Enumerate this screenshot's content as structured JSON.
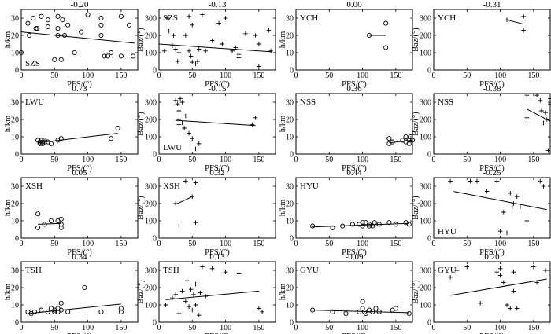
{
  "figure": {
    "xlabel": "PFS/(°)",
    "axis_ticks": {
      "x": [
        0,
        50,
        100,
        150
      ],
      "h": [
        0,
        10,
        20,
        30
      ],
      "baz": [
        0,
        100,
        200,
        300
      ]
    }
  },
  "chart_data": [
    {
      "type": "scatter",
      "title": "-0.20",
      "station": "SZS",
      "ylabel": "h/km",
      "marker": "circle",
      "label_pos": "bottom-left",
      "xlim": [
        0,
        175
      ],
      "ylim": [
        0,
        35
      ],
      "fit": [
        [
          0,
          22
        ],
        [
          170,
          15.5
        ]
      ],
      "points": [
        [
          0,
          10
        ],
        [
          10,
          27
        ],
        [
          12,
          20
        ],
        [
          18,
          30
        ],
        [
          22,
          24
        ],
        [
          24,
          24
        ],
        [
          30,
          31
        ],
        [
          40,
          29
        ],
        [
          40,
          25
        ],
        [
          50,
          6
        ],
        [
          55,
          31
        ],
        [
          55,
          24
        ],
        [
          55,
          20
        ],
        [
          60,
          6
        ],
        [
          62,
          29
        ],
        [
          65,
          20
        ],
        [
          70,
          26
        ],
        [
          80,
          10
        ],
        [
          90,
          22
        ],
        [
          100,
          32
        ],
        [
          120,
          30
        ],
        [
          120,
          26
        ],
        [
          120,
          20
        ],
        [
          125,
          8
        ],
        [
          130,
          8
        ],
        [
          135,
          10
        ],
        [
          150,
          8
        ],
        [
          150,
          31
        ],
        [
          162,
          26
        ],
        [
          168,
          8
        ]
      ]
    },
    {
      "type": "scatter",
      "title": "-0.13",
      "station": "SZS",
      "ylabel": "Baz/(°)",
      "marker": "plus",
      "label_pos": "top-left",
      "xlim": [
        0,
        175
      ],
      "ylim": [
        0,
        350
      ],
      "fit": [
        [
          0,
          150
        ],
        [
          170,
          105
        ]
      ],
      "points": [
        [
          8,
          110
        ],
        [
          12,
          300
        ],
        [
          15,
          225
        ],
        [
          20,
          140
        ],
        [
          22,
          200
        ],
        [
          25,
          120
        ],
        [
          28,
          50
        ],
        [
          30,
          100
        ],
        [
          40,
          200
        ],
        [
          45,
          110
        ],
        [
          45,
          310
        ],
        [
          48,
          80
        ],
        [
          50,
          45
        ],
        [
          50,
          260
        ],
        [
          55,
          35
        ],
        [
          58,
          50
        ],
        [
          60,
          120
        ],
        [
          65,
          320
        ],
        [
          70,
          110
        ],
        [
          80,
          170
        ],
        [
          90,
          270
        ],
        [
          95,
          150
        ],
        [
          100,
          300
        ],
        [
          110,
          110
        ],
        [
          115,
          130
        ],
        [
          120,
          90
        ],
        [
          120,
          70
        ],
        [
          130,
          210
        ],
        [
          145,
          200
        ],
        [
          150,
          150
        ],
        [
          150,
          20
        ],
        [
          165,
          230
        ],
        [
          168,
          110
        ]
      ]
    },
    {
      "type": "scatter",
      "title": "0.00",
      "station": "YCH",
      "ylabel": "h/km",
      "marker": "circle",
      "label_pos": "top-left",
      "xlim": [
        0,
        175
      ],
      "ylim": [
        0,
        35
      ],
      "fit": [
        [
          110,
          20
        ],
        [
          135,
          20
        ]
      ],
      "points": [
        [
          110,
          20
        ],
        [
          135,
          27
        ],
        [
          135,
          13
        ]
      ]
    },
    {
      "type": "scatter",
      "title": "-0.31",
      "station": "YCH",
      "ylabel": "Baz/(°)",
      "marker": "plus",
      "label_pos": "top-left",
      "xlim": [
        0,
        175
      ],
      "ylim": [
        0,
        350
      ],
      "fit": [
        [
          110,
          290
        ],
        [
          135,
          265
        ]
      ],
      "points": [
        [
          110,
          290
        ],
        [
          135,
          310
        ],
        [
          135,
          230
        ]
      ]
    },
    {
      "type": "scatter",
      "title": "0.73",
      "station": "LWU",
      "ylabel": "h/km",
      "marker": "circle",
      "label_pos": "top-left",
      "xlim": [
        0,
        175
      ],
      "ylim": [
        0,
        35
      ],
      "fit": [
        [
          25,
          6.5
        ],
        [
          145,
          12
        ]
      ],
      "points": [
        [
          25,
          8
        ],
        [
          28,
          7
        ],
        [
          28,
          6
        ],
        [
          30,
          8
        ],
        [
          32,
          7
        ],
        [
          32,
          6
        ],
        [
          35,
          8
        ],
        [
          35,
          7
        ],
        [
          40,
          7
        ],
        [
          45,
          6
        ],
        [
          55,
          8
        ],
        [
          60,
          9
        ],
        [
          135,
          9
        ],
        [
          145,
          15
        ]
      ]
    },
    {
      "type": "scatter",
      "title": "-0.15",
      "station": "LWU",
      "ylabel": "Baz/(°)",
      "marker": "plus",
      "label_pos": "bottom-left",
      "xlim": [
        0,
        175
      ],
      "ylim": [
        0,
        350
      ],
      "fit": [
        [
          25,
          195
        ],
        [
          145,
          165
        ]
      ],
      "points": [
        [
          25,
          310
        ],
        [
          28,
          290
        ],
        [
          30,
          250
        ],
        [
          30,
          200
        ],
        [
          30,
          170
        ],
        [
          32,
          320
        ],
        [
          35,
          300
        ],
        [
          35,
          180
        ],
        [
          38,
          150
        ],
        [
          40,
          220
        ],
        [
          45,
          120
        ],
        [
          50,
          90
        ],
        [
          55,
          30
        ],
        [
          60,
          60
        ],
        [
          140,
          170
        ],
        [
          145,
          210
        ]
      ]
    },
    {
      "type": "scatter",
      "title": "0.36",
      "station": "NSS",
      "ylabel": "h/km",
      "marker": "circle",
      "label_pos": "top-left",
      "xlim": [
        0,
        175
      ],
      "ylim": [
        0,
        35
      ],
      "fit": [
        [
          140,
          6.5
        ],
        [
          175,
          8
        ]
      ],
      "points": [
        [
          140,
          9
        ],
        [
          140,
          6
        ],
        [
          145,
          7
        ],
        [
          160,
          8
        ],
        [
          165,
          10
        ],
        [
          165,
          7
        ],
        [
          170,
          8
        ],
        [
          170,
          6
        ],
        [
          172,
          10
        ],
        [
          175,
          8
        ]
      ]
    },
    {
      "type": "scatter",
      "title": "-0.38",
      "station": "NSS",
      "ylabel": "Baz/(°)",
      "marker": "plus",
      "label_pos": "top-left",
      "xlim": [
        0,
        175
      ],
      "ylim": [
        0,
        350
      ],
      "fit": [
        [
          140,
          260
        ],
        [
          175,
          190
        ]
      ],
      "points": [
        [
          140,
          340
        ],
        [
          140,
          210
        ],
        [
          140,
          180
        ],
        [
          155,
          340
        ],
        [
          160,
          310
        ],
        [
          162,
          250
        ],
        [
          165,
          180
        ],
        [
          168,
          240
        ],
        [
          170,
          200
        ],
        [
          172,
          20
        ],
        [
          175,
          320
        ],
        [
          175,
          290
        ]
      ]
    },
    {
      "type": "scatter",
      "title": "0.05",
      "station": "XSH",
      "ylabel": "h/km",
      "marker": "circle",
      "label_pos": "top-left",
      "xlim": [
        0,
        175
      ],
      "ylim": [
        0,
        35
      ],
      "fit": [
        [
          25,
          8
        ],
        [
          60,
          8.5
        ]
      ],
      "points": [
        [
          25,
          14
        ],
        [
          25,
          6
        ],
        [
          35,
          8
        ],
        [
          45,
          10
        ],
        [
          55,
          10
        ],
        [
          60,
          11
        ],
        [
          60,
          8
        ],
        [
          60,
          6
        ]
      ]
    },
    {
      "type": "scatter",
      "title": "0.32",
      "station": "XSH",
      "ylabel": "Baz/(°)",
      "marker": "plus",
      "label_pos": "top-left",
      "xlim": [
        0,
        175
      ],
      "ylim": [
        0,
        350
      ],
      "fit": [
        [
          25,
          195
        ],
        [
          50,
          240
        ]
      ],
      "points": [
        [
          25,
          200
        ],
        [
          30,
          70
        ],
        [
          40,
          330
        ],
        [
          50,
          240
        ],
        [
          55,
          90
        ],
        [
          55,
          320
        ]
      ]
    },
    {
      "type": "scatter",
      "title": "0.44",
      "station": "HYU",
      "ylabel": "h/km",
      "marker": "circle",
      "label_pos": "top-left",
      "xlim": [
        0,
        175
      ],
      "ylim": [
        0,
        35
      ],
      "fit": [
        [
          25,
          6.5
        ],
        [
          170,
          8.5
        ]
      ],
      "points": [
        [
          25,
          7
        ],
        [
          55,
          6
        ],
        [
          70,
          7
        ],
        [
          85,
          8
        ],
        [
          95,
          8
        ],
        [
          100,
          9
        ],
        [
          100,
          7
        ],
        [
          105,
          9
        ],
        [
          110,
          8
        ],
        [
          110,
          7
        ],
        [
          115,
          7
        ],
        [
          118,
          9
        ],
        [
          125,
          8
        ],
        [
          140,
          9
        ],
        [
          150,
          8
        ],
        [
          165,
          9
        ],
        [
          170,
          8
        ]
      ]
    },
    {
      "type": "scatter",
      "title": "-0.25",
      "station": "HYU",
      "ylabel": "Baz/(°)",
      "marker": "plus",
      "label_pos": "bottom-left",
      "xlim": [
        0,
        175
      ],
      "ylim": [
        0,
        350
      ],
      "fit": [
        [
          30,
          270
        ],
        [
          170,
          165
        ]
      ],
      "points": [
        [
          25,
          330
        ],
        [
          55,
          330
        ],
        [
          65,
          330
        ],
        [
          80,
          270
        ],
        [
          95,
          330
        ],
        [
          100,
          40
        ],
        [
          105,
          150
        ],
        [
          110,
          30
        ],
        [
          115,
          260
        ],
        [
          118,
          180
        ],
        [
          120,
          200
        ],
        [
          125,
          240
        ],
        [
          130,
          180
        ],
        [
          140,
          100
        ],
        [
          160,
          330
        ],
        [
          165,
          300
        ]
      ]
    },
    {
      "type": "scatter",
      "title": "0.34",
      "station": "TSH",
      "ylabel": "h/km",
      "marker": "circle",
      "label_pos": "top-left",
      "xlim": [
        0,
        175
      ],
      "ylim": [
        0,
        35
      ],
      "fit": [
        [
          10,
          5
        ],
        [
          150,
          10.5
        ]
      ],
      "points": [
        [
          10,
          6
        ],
        [
          15,
          5
        ],
        [
          20,
          6
        ],
        [
          30,
          7
        ],
        [
          40,
          6
        ],
        [
          45,
          8
        ],
        [
          50,
          7
        ],
        [
          50,
          6
        ],
        [
          55,
          6
        ],
        [
          55,
          8
        ],
        [
          60,
          7
        ],
        [
          60,
          11
        ],
        [
          70,
          6
        ],
        [
          95,
          20
        ],
        [
          120,
          6
        ],
        [
          150,
          8
        ],
        [
          150,
          6
        ]
      ]
    },
    {
      "type": "scatter",
      "title": "0.13",
      "station": "TSH",
      "ylabel": "Baz/(°)",
      "marker": "plus",
      "label_pos": "top-left",
      "xlim": [
        0,
        175
      ],
      "ylim": [
        0,
        350
      ],
      "fit": [
        [
          10,
          130
        ],
        [
          150,
          180
        ]
      ],
      "points": [
        [
          10,
          100
        ],
        [
          20,
          140
        ],
        [
          25,
          160
        ],
        [
          30,
          50
        ],
        [
          35,
          180
        ],
        [
          40,
          120
        ],
        [
          42,
          240
        ],
        [
          45,
          90
        ],
        [
          48,
          190
        ],
        [
          50,
          70
        ],
        [
          52,
          160
        ],
        [
          55,
          220
        ],
        [
          55,
          100
        ],
        [
          60,
          40
        ],
        [
          62,
          170
        ],
        [
          65,
          320
        ],
        [
          70,
          150
        ],
        [
          80,
          310
        ],
        [
          100,
          290
        ],
        [
          120,
          280
        ],
        [
          150,
          80
        ],
        [
          155,
          60
        ]
      ]
    },
    {
      "type": "scatter",
      "title": "-0.09",
      "station": "GYU",
      "ylabel": "h/km",
      "marker": "circle",
      "label_pos": "top-left",
      "xlim": [
        0,
        175
      ],
      "ylim": [
        0,
        35
      ],
      "fit": [
        [
          25,
          7
        ],
        [
          170,
          5.5
        ]
      ],
      "points": [
        [
          25,
          7
        ],
        [
          55,
          6
        ],
        [
          75,
          5
        ],
        [
          95,
          6
        ],
        [
          100,
          12
        ],
        [
          100,
          8
        ],
        [
          103,
          6
        ],
        [
          105,
          5
        ],
        [
          110,
          7
        ],
        [
          115,
          6
        ],
        [
          120,
          8
        ],
        [
          125,
          6
        ],
        [
          145,
          7
        ],
        [
          150,
          8
        ],
        [
          170,
          5
        ]
      ]
    },
    {
      "type": "scatter",
      "title": "0.20",
      "station": "GYU",
      "ylabel": "Baz/(°)",
      "marker": "plus",
      "label_pos": "top-left",
      "xlim": [
        0,
        175
      ],
      "ylim": [
        0,
        350
      ],
      "fit": [
        [
          25,
          155
        ],
        [
          170,
          250
        ]
      ],
      "points": [
        [
          25,
          260
        ],
        [
          35,
          300
        ],
        [
          50,
          320
        ],
        [
          70,
          110
        ],
        [
          95,
          290
        ],
        [
          100,
          310
        ],
        [
          100,
          270
        ],
        [
          105,
          230
        ],
        [
          110,
          100
        ],
        [
          115,
          80
        ],
        [
          120,
          290
        ],
        [
          120,
          180
        ],
        [
          125,
          80
        ],
        [
          150,
          320
        ],
        [
          155,
          230
        ],
        [
          168,
          300
        ]
      ]
    }
  ]
}
